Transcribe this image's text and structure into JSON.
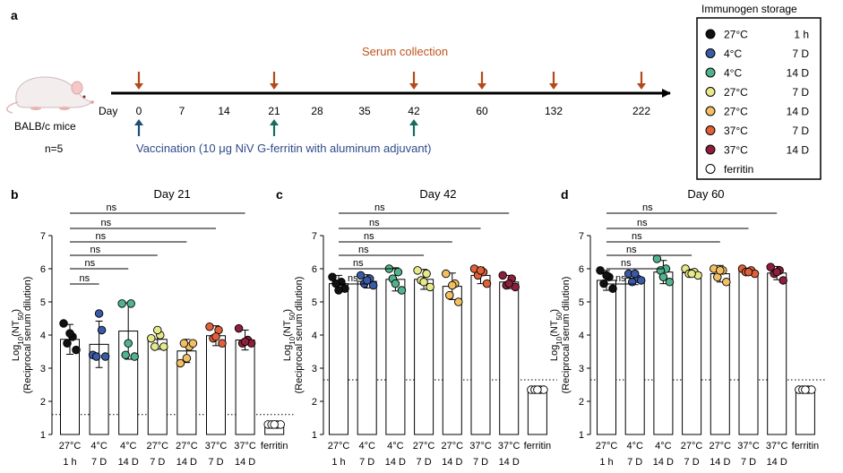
{
  "panel_labels": [
    "a",
    "b",
    "c",
    "d"
  ],
  "timeline": {
    "day_label": "Day",
    "days": [
      "0",
      "7",
      "14",
      "21",
      "28",
      "35",
      "42",
      "60",
      "132",
      "222"
    ],
    "serum_collection_label": "Serum collection",
    "serum_collection_days": [
      "0",
      "21",
      "42",
      "60",
      "132",
      "222"
    ],
    "vaccination_label": "Vaccination (10 μg NiV G-ferritin with aluminum adjuvant)",
    "vaccination_days": [
      "0",
      "21",
      "42"
    ],
    "mouse_label": "BALB/c mice",
    "n_label": "n=5"
  },
  "colors": {
    "serum_arrow": "#b5491a",
    "vaccination_arrow": "#1f4e79",
    "vaccination_arrow_alt": "#1a6b5f",
    "vaccination_text": "#2f4a8a",
    "serum_text": "#c0531c"
  },
  "legend": {
    "title": "Immunogen storage",
    "items": [
      {
        "temp": "27°C",
        "time": "1 h",
        "color": "#111111"
      },
      {
        "temp": "4°C",
        "time": "7 D",
        "color": "#3b5aa6"
      },
      {
        "temp": "4°C",
        "time": "14 D",
        "color": "#4fb38c"
      },
      {
        "temp": "27°C",
        "time": "7 D",
        "color": "#e6e88a"
      },
      {
        "temp": "27°C",
        "time": "14 D",
        "color": "#f2c063"
      },
      {
        "temp": "37°C",
        "time": "7 D",
        "color": "#e0603a"
      },
      {
        "temp": "37°C",
        "time": "14 D",
        "color": "#8e1f3c"
      },
      {
        "temp": "ferritin",
        "time": "",
        "color": "#ffffff"
      }
    ]
  },
  "chart_data": [
    {
      "type": "bar",
      "title": "Day 21",
      "ylabel": "Log10(NT50)",
      "ylabel2": "(Reciprocal serum dilution)",
      "ylim": [
        1,
        7
      ],
      "yticks": [
        1,
        2,
        3,
        4,
        5,
        6,
        7
      ],
      "categories": [
        [
          "27°C",
          "1 h"
        ],
        [
          "4°C",
          "7 D"
        ],
        [
          "4°C",
          "14 D"
        ],
        [
          "27°C",
          "7 D"
        ],
        [
          "27°C",
          "14 D"
        ],
        [
          "37°C",
          "7 D"
        ],
        [
          "37°C",
          "14 D"
        ],
        [
          "ferritin",
          ""
        ]
      ],
      "means": [
        3.87,
        3.72,
        4.12,
        3.87,
        3.52,
        3.98,
        3.85,
        1.3
      ],
      "sd": [
        0.45,
        0.7,
        0.85,
        0.3,
        0.35,
        0.3,
        0.3,
        0.02
      ],
      "points": [
        [
          4.35,
          3.95,
          3.75,
          3.55,
          4.05
        ],
        [
          3.4,
          4.15,
          3.35,
          3.35,
          4.65
        ],
        [
          4.95,
          4.95,
          3.4,
          3.35,
          3.75
        ],
        [
          3.9,
          4.0,
          3.65,
          3.65,
          4.15
        ],
        [
          3.15,
          3.65,
          3.75,
          3.75,
          3.3
        ],
        [
          4.25,
          4.15,
          3.9,
          3.75,
          3.95
        ],
        [
          4.2,
          3.85,
          3.75,
          3.75,
          3.8
        ],
        [
          1.3,
          1.3,
          1.3,
          1.3,
          1.3
        ]
      ],
      "threshold": 1.6,
      "significance": [
        "ns",
        "ns",
        "ns",
        "ns",
        "ns",
        "ns"
      ]
    },
    {
      "type": "bar",
      "title": "Day 42",
      "ylabel": "Log10(NT50)",
      "ylabel2": "(Reciprocal serum dilution)",
      "ylim": [
        1,
        7
      ],
      "yticks": [
        1,
        2,
        3,
        4,
        5,
        6,
        7
      ],
      "categories": [
        [
          "27°C",
          "1 h"
        ],
        [
          "4°C",
          "7 D"
        ],
        [
          "4°C",
          "14 D"
        ],
        [
          "27°C",
          "7 D"
        ],
        [
          "27°C",
          "14 D"
        ],
        [
          "37°C",
          "7 D"
        ],
        [
          "37°C",
          "14 D"
        ],
        [
          "ferritin",
          ""
        ]
      ],
      "means": [
        5.55,
        5.62,
        5.68,
        5.68,
        5.47,
        5.8,
        5.6,
        2.35
      ],
      "sd": [
        0.25,
        0.2,
        0.35,
        0.3,
        0.4,
        0.25,
        0.2,
        0.03
      ],
      "points": [
        [
          5.75,
          5.6,
          5.55,
          5.4,
          5.35
        ],
        [
          5.8,
          5.7,
          5.55,
          5.5,
          5.65
        ],
        [
          6.0,
          5.9,
          5.7,
          5.35,
          5.55
        ],
        [
          5.95,
          5.85,
          5.65,
          5.45,
          5.6
        ],
        [
          5.85,
          5.55,
          5.2,
          5.0,
          5.5
        ],
        [
          6.0,
          5.9,
          5.8,
          5.55,
          5.95
        ],
        [
          5.8,
          5.7,
          5.5,
          5.45,
          5.55
        ],
        [
          2.35,
          2.35,
          2.35,
          2.35,
          2.35
        ]
      ],
      "threshold": 2.65,
      "significance": [
        "ns",
        "ns",
        "ns",
        "ns",
        "ns",
        "ns"
      ]
    },
    {
      "type": "bar",
      "title": "Day 60",
      "ylabel": "Log10(NT50)",
      "ylabel2": "(Reciprocal serum dilution)",
      "ylim": [
        1,
        7
      ],
      "yticks": [
        1,
        2,
        3,
        4,
        5,
        6,
        7
      ],
      "categories": [
        [
          "27°C",
          "1 h"
        ],
        [
          "4°C",
          "7 D"
        ],
        [
          "4°C",
          "14 D"
        ],
        [
          "27°C",
          "7 D"
        ],
        [
          "27°C",
          "14 D"
        ],
        [
          "37°C",
          "7 D"
        ],
        [
          "37°C",
          "14 D"
        ],
        [
          "ferritin",
          ""
        ]
      ],
      "means": [
        5.65,
        5.72,
        5.9,
        5.88,
        5.85,
        5.92,
        5.87,
        2.35
      ],
      "sd": [
        0.3,
        0.2,
        0.35,
        0.1,
        0.25,
        0.1,
        0.2,
        0.03
      ],
      "points": [
        [
          5.95,
          5.75,
          5.55,
          5.4,
          5.8
        ],
        [
          5.85,
          5.7,
          5.6,
          5.65,
          5.85
        ],
        [
          6.3,
          6.0,
          5.95,
          5.6,
          5.75
        ],
        [
          6.0,
          5.9,
          5.85,
          5.8,
          5.85
        ],
        [
          6.0,
          5.95,
          5.75,
          5.6,
          5.95
        ],
        [
          6.0,
          5.95,
          5.9,
          5.85,
          5.9
        ],
        [
          6.05,
          5.95,
          5.85,
          5.65,
          5.9
        ],
        [
          2.35,
          2.35,
          2.35,
          2.35,
          2.35
        ]
      ],
      "threshold": 2.65,
      "significance": [
        "ns",
        "ns",
        "ns",
        "ns",
        "ns",
        "ns"
      ]
    }
  ]
}
